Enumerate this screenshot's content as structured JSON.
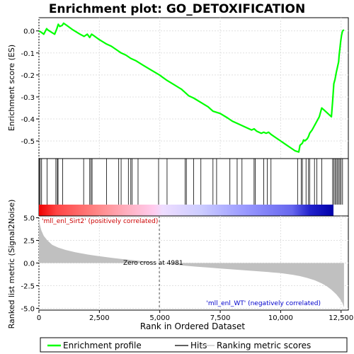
{
  "chart_data": {
    "type": "line",
    "title": "Enrichment plot: GO_DETOXIFICATION",
    "es_panel": {
      "ylabel": "Enrichment score (ES)",
      "ylim": [
        -0.58,
        0.06
      ],
      "yticks": [
        0.0,
        -0.1,
        -0.2,
        -0.3,
        -0.4,
        -0.5
      ],
      "ytick_labels": [
        "0.0",
        "-0.1",
        "-0.2",
        "-0.3",
        "-0.4",
        "-0.5"
      ],
      "series": [
        {
          "name": "Enrichment profile",
          "color": "#00ff00",
          "x": [
            0,
            80,
            200,
            320,
            360,
            500,
            650,
            740,
            800,
            860,
            960,
            1020,
            1150,
            1400,
            1700,
            1870,
            2000,
            2100,
            2180,
            2250,
            2500,
            2800,
            3000,
            3200,
            3400,
            3600,
            3800,
            4000,
            4300,
            4600,
            4981,
            5300,
            5600,
            5900,
            6100,
            6200,
            6400,
            6700,
            7000,
            7200,
            7500,
            7800,
            8000,
            8200,
            8400,
            8600,
            8800,
            8900,
            9000,
            9100,
            9200,
            9300,
            9400,
            9500,
            9600,
            9800,
            10000,
            10200,
            10400,
            10600,
            10750,
            10800,
            10900,
            10950,
            11000,
            11100,
            11150,
            11200,
            11300,
            11400,
            11500,
            11600,
            11700,
            11800,
            11900,
            12000,
            12100,
            12150,
            12200,
            12250,
            12300,
            12350,
            12400,
            12420,
            12450,
            12480,
            12520,
            12560,
            12620
          ],
          "y": [
            0.0,
            -0.005,
            -0.015,
            0.01,
            0.005,
            -0.005,
            -0.015,
            0.01,
            0.03,
            0.02,
            0.025,
            0.035,
            0.025,
            0.005,
            -0.015,
            -0.025,
            -0.015,
            -0.03,
            -0.015,
            -0.02,
            -0.04,
            -0.06,
            -0.07,
            -0.085,
            -0.1,
            -0.11,
            -0.125,
            -0.135,
            -0.155,
            -0.175,
            -0.2,
            -0.225,
            -0.245,
            -0.265,
            -0.285,
            -0.295,
            -0.305,
            -0.325,
            -0.345,
            -0.365,
            -0.375,
            -0.395,
            -0.41,
            -0.42,
            -0.43,
            -0.44,
            -0.45,
            -0.445,
            -0.455,
            -0.46,
            -0.465,
            -0.46,
            -0.465,
            -0.46,
            -0.47,
            -0.485,
            -0.5,
            -0.515,
            -0.53,
            -0.545,
            -0.55,
            -0.52,
            -0.51,
            -0.495,
            -0.5,
            -0.49,
            -0.48,
            -0.465,
            -0.45,
            -0.43,
            -0.41,
            -0.39,
            -0.35,
            -0.36,
            -0.37,
            -0.38,
            -0.39,
            -0.32,
            -0.24,
            -0.22,
            -0.19,
            -0.165,
            -0.14,
            -0.11,
            -0.08,
            -0.05,
            -0.02,
            0.0,
            0.005
          ]
        }
      ],
      "hits": [
        15,
        55,
        110,
        340,
        700,
        760,
        790,
        980,
        1850,
        2100,
        2150,
        2200,
        2800,
        3300,
        3400,
        3700,
        3800,
        3850,
        4100,
        4950,
        5300,
        6050,
        6100,
        6400,
        6700,
        7200,
        7350,
        7900,
        8200,
        8400,
        8900,
        8950,
        9300,
        9450,
        9600,
        10700,
        10850,
        10900,
        11050,
        11150,
        11200,
        11400,
        11500,
        11700,
        12150,
        12200,
        12250,
        12300,
        12350,
        12400,
        12450,
        12500,
        12560
      ]
    },
    "metric_panel": {
      "ylabel": "Ranked list metric (Signal2Noise)",
      "xlabel": "Rank in Ordered Dataset",
      "ylim": [
        -5.2,
        5.2
      ],
      "yticks": [
        5.0,
        2.5,
        0.0,
        -2.5,
        -5.0
      ],
      "ytick_labels": [
        "5.0",
        "2.5",
        "0.0",
        "-2.5",
        "-5.0"
      ],
      "fill_color": "#c0c0c0",
      "x": [
        0,
        40,
        100,
        200,
        350,
        550,
        800,
        1100,
        1500,
        2000,
        2500,
        3000,
        3500,
        4000,
        4500,
        4981,
        5500,
        6000,
        6500,
        7000,
        7500,
        8000,
        8500,
        9000,
        9500,
        10000,
        10500,
        10800,
        11100,
        11400,
        11700,
        11900,
        12100,
        12300,
        12450,
        12550,
        12620
      ],
      "values": [
        4.8,
        4.2,
        3.6,
        3.0,
        2.5,
        2.0,
        1.7,
        1.45,
        1.2,
        0.95,
        0.75,
        0.58,
        0.42,
        0.28,
        0.14,
        0.0,
        -0.15,
        -0.28,
        -0.4,
        -0.5,
        -0.6,
        -0.7,
        -0.8,
        -0.9,
        -1.0,
        -1.12,
        -1.3,
        -1.45,
        -1.65,
        -1.9,
        -2.25,
        -2.55,
        -2.95,
        -3.45,
        -3.95,
        -4.4,
        -4.9
      ]
    },
    "xlim": [
      0,
      12800
    ],
    "xticks": [
      0,
      2500,
      5000,
      7500,
      10000,
      12500
    ],
    "xtick_labels": [
      "0",
      "2,500",
      "5,000",
      "7,500",
      "10,000",
      "12,500"
    ],
    "zero_cross_rank": 4981,
    "annotations": {
      "positive": "'mll_enl_Sirt2' (positively correlated)",
      "zero_cross": "Zero cross at 4981",
      "negative": "'mll_enl_WT' (negatively correlated)"
    },
    "legend": {
      "placement": "bottom",
      "entries": [
        {
          "label": "Enrichment profile",
          "color": "#00ff00"
        },
        {
          "label": "Hits",
          "color": "#000000"
        },
        {
          "label": "Ranking metric scores",
          "color": "#c0c0c0"
        }
      ]
    },
    "colors": {
      "positive_text": "#cc0000",
      "negative_text": "#0000cc",
      "grid": "#e0e0e0"
    },
    "grid": true
  }
}
